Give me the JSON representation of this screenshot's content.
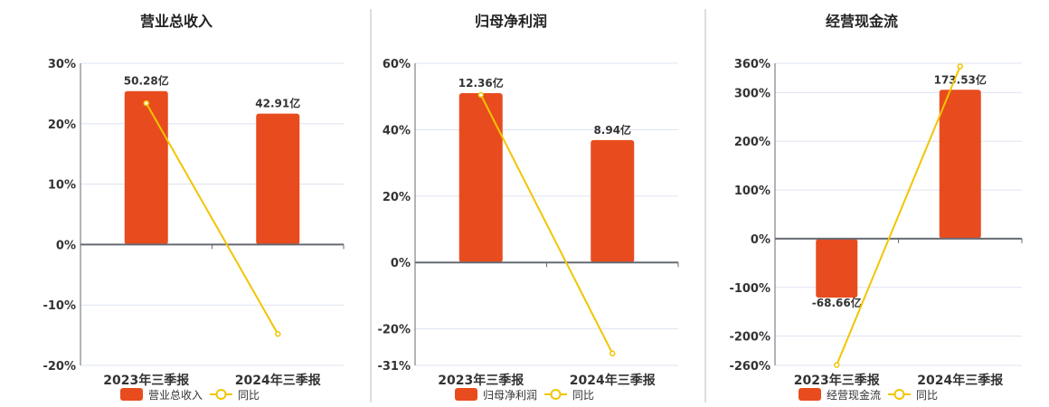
{
  "colors": {
    "bar": "#e84c1e",
    "line": "#f2c500",
    "grid": "#dde3f0",
    "axis": "#666a73",
    "text": "#333333",
    "divider": "#bbbbbb"
  },
  "chart_data": [
    {
      "type": "bar+line",
      "title": "营业总收入",
      "categories": [
        "2023年三季报",
        "2024年三季报"
      ],
      "bar_series": {
        "name": "营业总收入",
        "values": [
          50.28,
          42.91
        ],
        "labels": [
          "50.28亿",
          "42.91亿"
        ]
      },
      "line_series": {
        "name": "同比",
        "values": [
          23.4,
          -14.8
        ]
      },
      "yticks": [
        "30%",
        "20%",
        "10%",
        "0%",
        "-10%",
        "-20%"
      ],
      "ytick_values": [
        30,
        20,
        10,
        0,
        -10,
        -20
      ],
      "ylim": [
        -20,
        30
      ],
      "legend": "bottom"
    },
    {
      "type": "bar+line",
      "title": "归母净利润",
      "categories": [
        "2023年三季报",
        "2024年三季报"
      ],
      "bar_series": {
        "name": "归母净利润",
        "values": [
          12.36,
          8.94
        ],
        "labels": [
          "12.36亿",
          "8.94亿"
        ]
      },
      "line_series": {
        "name": "同比",
        "values": [
          50.5,
          -27.4
        ]
      },
      "yticks": [
        "60%",
        "40%",
        "20%",
        "0%",
        "-20%",
        "-31%"
      ],
      "ytick_values": [
        60,
        40,
        20,
        0,
        -20,
        -31
      ],
      "ylim": [
        -31,
        60
      ],
      "legend": "bottom"
    },
    {
      "type": "bar+line",
      "title": "经营现金流",
      "categories": [
        "2023年三季报",
        "2024年三季报"
      ],
      "bar_series": {
        "name": "经营现金流",
        "values": [
          -68.66,
          173.53
        ],
        "labels": [
          "-68.66亿",
          "173.53亿"
        ]
      },
      "line_series": {
        "name": "同比",
        "values": [
          -259,
          353.7
        ]
      },
      "yticks": [
        "360%",
        "300%",
        "200%",
        "100%",
        "0%",
        "-100%",
        "-200%",
        "-260%"
      ],
      "ytick_values": [
        360,
        300,
        200,
        100,
        0,
        -100,
        -200,
        -260
      ],
      "ylim": [
        -260,
        360
      ],
      "legend": "bottom"
    }
  ]
}
